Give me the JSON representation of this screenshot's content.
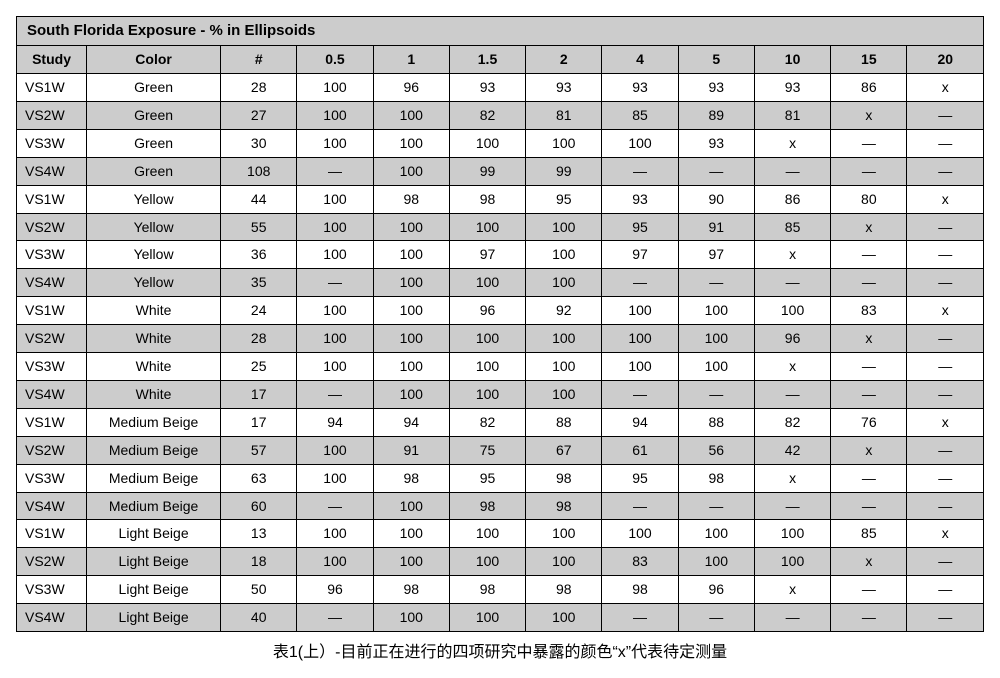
{
  "table": {
    "title": "South Florida Exposure - % in Ellipsoids",
    "columns": [
      "Study",
      "Color",
      "#",
      "0.5",
      "1",
      "1.5",
      "2",
      "4",
      "5",
      "10",
      "15",
      "20"
    ],
    "dash": "—",
    "rows": [
      {
        "shaded": false,
        "cells": [
          "VS1W",
          "Green",
          "28",
          "100",
          "96",
          "93",
          "93",
          "93",
          "93",
          "93",
          "86",
          "x"
        ]
      },
      {
        "shaded": true,
        "cells": [
          "VS2W",
          "Green",
          "27",
          "100",
          "100",
          "82",
          "81",
          "85",
          "89",
          "81",
          "x",
          "—"
        ]
      },
      {
        "shaded": false,
        "cells": [
          "VS3W",
          "Green",
          "30",
          "100",
          "100",
          "100",
          "100",
          "100",
          "93",
          "x",
          "—",
          "—"
        ]
      },
      {
        "shaded": true,
        "cells": [
          "VS4W",
          "Green",
          "108",
          "—",
          "100",
          "99",
          "99",
          "—",
          "—",
          "—",
          "—",
          "—"
        ]
      },
      {
        "shaded": false,
        "cells": [
          "VS1W",
          "Yellow",
          "44",
          "100",
          "98",
          "98",
          "95",
          "93",
          "90",
          "86",
          "80",
          "x"
        ]
      },
      {
        "shaded": true,
        "cells": [
          "VS2W",
          "Yellow",
          "55",
          "100",
          "100",
          "100",
          "100",
          "95",
          "91",
          "85",
          "x",
          "—"
        ]
      },
      {
        "shaded": false,
        "cells": [
          "VS3W",
          "Yellow",
          "36",
          "100",
          "100",
          "97",
          "100",
          "97",
          "97",
          "x",
          "—",
          "—"
        ]
      },
      {
        "shaded": true,
        "cells": [
          "VS4W",
          "Yellow",
          "35",
          "—",
          "100",
          "100",
          "100",
          "—",
          "—",
          "—",
          "—",
          "—"
        ]
      },
      {
        "shaded": false,
        "cells": [
          "VS1W",
          "White",
          "24",
          "100",
          "100",
          "96",
          "92",
          "100",
          "100",
          "100",
          "83",
          "x"
        ]
      },
      {
        "shaded": true,
        "cells": [
          "VS2W",
          "White",
          "28",
          "100",
          "100",
          "100",
          "100",
          "100",
          "100",
          "96",
          "x",
          "—"
        ]
      },
      {
        "shaded": false,
        "cells": [
          "VS3W",
          "White",
          "25",
          "100",
          "100",
          "100",
          "100",
          "100",
          "100",
          "x",
          "—",
          "—"
        ]
      },
      {
        "shaded": true,
        "cells": [
          "VS4W",
          "White",
          "17",
          "—",
          "100",
          "100",
          "100",
          "—",
          "—",
          "—",
          "—",
          "—"
        ]
      },
      {
        "shaded": false,
        "cells": [
          "VS1W",
          "Medium Beige",
          "17",
          "94",
          "94",
          "82",
          "88",
          "94",
          "88",
          "82",
          "76",
          "x"
        ]
      },
      {
        "shaded": true,
        "cells": [
          "VS2W",
          "Medium Beige",
          "57",
          "100",
          "91",
          "75",
          "67",
          "61",
          "56",
          "42",
          "x",
          "—"
        ]
      },
      {
        "shaded": false,
        "cells": [
          "VS3W",
          "Medium Beige",
          "63",
          "100",
          "98",
          "95",
          "98",
          "95",
          "98",
          "x",
          "—",
          "—"
        ]
      },
      {
        "shaded": true,
        "cells": [
          "VS4W",
          "Medium Beige",
          "60",
          "—",
          "100",
          "98",
          "98",
          "—",
          "—",
          "—",
          "—",
          "—"
        ]
      },
      {
        "shaded": false,
        "cells": [
          "VS1W",
          "Light Beige",
          "13",
          "100",
          "100",
          "100",
          "100",
          "100",
          "100",
          "100",
          "85",
          "x"
        ]
      },
      {
        "shaded": true,
        "cells": [
          "VS2W",
          "Light Beige",
          "18",
          "100",
          "100",
          "100",
          "100",
          "83",
          "100",
          "100",
          "x",
          "—"
        ]
      },
      {
        "shaded": false,
        "cells": [
          "VS3W",
          "Light Beige",
          "50",
          "96",
          "98",
          "98",
          "98",
          "98",
          "96",
          "x",
          "—",
          "—"
        ]
      },
      {
        "shaded": true,
        "cells": [
          "VS4W",
          "Light Beige",
          "40",
          "—",
          "100",
          "100",
          "100",
          "—",
          "—",
          "—",
          "—",
          "—"
        ]
      }
    ]
  },
  "caption": "表1(上）-目前正在进行的四项研究中暴露的颜色“x”代表待定测量"
}
